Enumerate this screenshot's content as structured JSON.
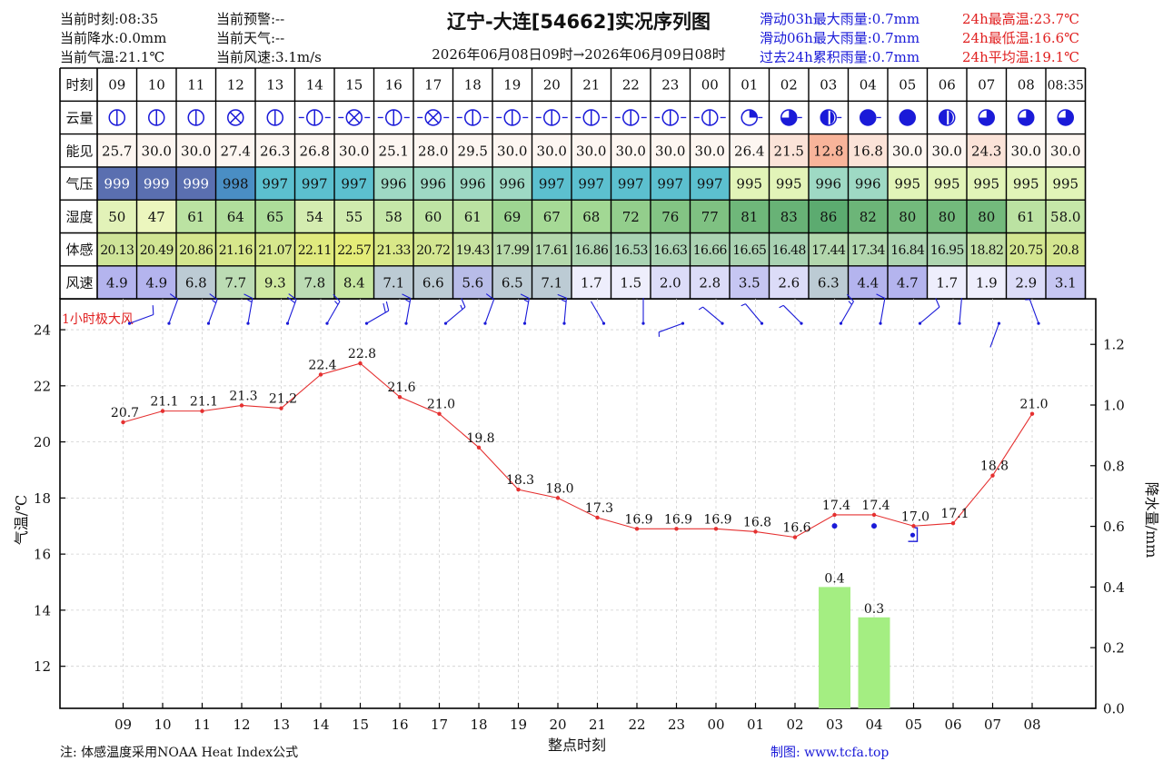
{
  "header": {
    "left": [
      "当前时刻:08:35",
      "当前降水:0.0mm",
      "当前气温:21.1℃"
    ],
    "middle": [
      "当前预警:--",
      "当前天气:--",
      "当前风速:3.1m/s"
    ],
    "title": "辽宁-大连[54662]实况序列图",
    "range": "2026年06月08日09时→2026年06月09日08时",
    "rain_stats": [
      "滑动03h最大雨量:0.7mm",
      "滑动06h最大雨量:0.7mm",
      "过去24h累积雨量:0.7mm"
    ],
    "temp_stats": [
      "24h最高温:23.7℃",
      "24h最低温:16.6℃",
      "24h平均温:19.1℃"
    ]
  },
  "table": {
    "row_labels": [
      "时刻",
      "云量",
      "能见",
      "气压",
      "湿度",
      "体感",
      "风速"
    ],
    "hours": [
      "09",
      "10",
      "11",
      "12",
      "13",
      "14",
      "15",
      "16",
      "17",
      "18",
      "19",
      "20",
      "21",
      "22",
      "23",
      "00",
      "01",
      "02",
      "03",
      "04",
      "05",
      "06",
      "07",
      "08",
      "08:35"
    ],
    "cloud": [
      "E",
      "E",
      "E",
      "X",
      "E",
      "E",
      "X",
      "E",
      "X",
      "E",
      "E",
      "E",
      "E",
      "E",
      "E",
      "E",
      "Q1",
      "Q3",
      "H",
      "F",
      "F",
      "H",
      "Q3",
      "Q3",
      "Q3"
    ],
    "visibility": [
      "25.7",
      "30.0",
      "30.0",
      "27.4",
      "26.3",
      "26.8",
      "30.0",
      "25.1",
      "28.0",
      "29.5",
      "30.0",
      "30.0",
      "30.0",
      "30.0",
      "30.0",
      "30.0",
      "26.4",
      "21.5",
      "12.8",
      "16.8",
      "30.0",
      "30.0",
      "24.3",
      "30.0",
      "30.0"
    ],
    "pressure": [
      "999",
      "999",
      "999",
      "998",
      "997",
      "997",
      "997",
      "996",
      "996",
      "996",
      "996",
      "997",
      "997",
      "997",
      "997",
      "997",
      "995",
      "995",
      "996",
      "996",
      "995",
      "995",
      "995",
      "995",
      "995"
    ],
    "humidity": [
      "50",
      "47",
      "61",
      "64",
      "65",
      "54",
      "55",
      "58",
      "60",
      "61",
      "69",
      "67",
      "68",
      "72",
      "76",
      "77",
      "81",
      "83",
      "86",
      "82",
      "80",
      "80",
      "80",
      "61",
      "58.0"
    ],
    "feels_like": [
      "20.13",
      "20.49",
      "20.86",
      "21.16",
      "21.07",
      "22.11",
      "22.57",
      "21.33",
      "20.72",
      "19.43",
      "17.99",
      "17.61",
      "16.86",
      "16.53",
      "16.63",
      "16.66",
      "16.65",
      "16.48",
      "17.44",
      "17.34",
      "16.84",
      "16.95",
      "18.82",
      "20.75",
      "20.8"
    ],
    "wind_speed": [
      "4.9",
      "4.9",
      "6.8",
      "7.7",
      "9.3",
      "7.8",
      "8.4",
      "7.1",
      "6.6",
      "5.6",
      "6.5",
      "7.1",
      "1.7",
      "1.5",
      "2.0",
      "2.8",
      "3.5",
      "2.6",
      "6.3",
      "4.4",
      "4.7",
      "1.7",
      "1.9",
      "2.9",
      "3.1"
    ],
    "colors": {
      "visibility_low": "#f8b49a",
      "visibility_mid": "#fbe3d8",
      "visibility_high": "#fdf6f1",
      "pressure_999": "#5a6fb0",
      "pressure_998": "#4a8ec4",
      "pressure_997": "#5cc0cf",
      "pressure_996": "#9ed9c4",
      "pressure_995": "#e2f4b8"
    }
  },
  "chart_data": {
    "type": "line",
    "x": [
      "09",
      "10",
      "11",
      "12",
      "13",
      "14",
      "15",
      "16",
      "17",
      "18",
      "19",
      "20",
      "21",
      "22",
      "23",
      "00",
      "01",
      "02",
      "03",
      "04",
      "05",
      "06",
      "07",
      "08"
    ],
    "series": [
      {
        "type": "line",
        "color": "#e53030",
        "values": [
          20.7,
          21.1,
          21.1,
          21.3,
          21.2,
          22.4,
          22.8,
          21.6,
          21.0,
          19.8,
          18.3,
          18.0,
          17.3,
          16.9,
          16.9,
          16.9,
          16.8,
          16.6,
          17.4,
          17.4,
          17.0,
          17.1,
          18.8,
          21.0
        ],
        "value_labels": [
          "20.7",
          "21.1",
          "21.1",
          "21.3",
          "21.2",
          "22.4",
          "22.8",
          "21.6",
          "21.0",
          "19.8",
          "18.3",
          "18.0",
          "17.3",
          "16.9",
          "16.9",
          "16.9",
          "16.8",
          "16.6",
          "17.4",
          "17.4",
          "17.0",
          "17.1",
          "18.8",
          "21.0"
        ]
      },
      {
        "type": "bar",
        "axis": "right",
        "color": "#a4ee82",
        "values": [
          0,
          0,
          0,
          0,
          0,
          0,
          0,
          0,
          0,
          0,
          0,
          0,
          0,
          0,
          0,
          0,
          0,
          0,
          0.4,
          0.3,
          0,
          0,
          0,
          0
        ],
        "value_labels": [
          "",
          "",
          "",
          "",
          "",
          "",
          "",
          "",
          "",
          "",
          "",
          "",
          "",
          "",
          "",
          "",
          "",
          "",
          "0.4",
          "0.3",
          "",
          "",
          "",
          ""
        ]
      }
    ],
    "xlabel": "整点时刻",
    "ylabel": "气温/℃",
    "ylabel_right": "降水量/mm",
    "yticks": [
      "12",
      "14",
      "16",
      "18",
      "20",
      "22",
      "24"
    ],
    "ylim": [
      10.5,
      25.1
    ],
    "yticks_right": [
      "0.0",
      "0.2",
      "0.4",
      "0.6",
      "0.8",
      "1.0",
      "1.2"
    ],
    "ylim_right": [
      0,
      1.35
    ],
    "gust_label": "1小时极大风",
    "grid": true,
    "wind_barbs": [
      {
        "dir": 250,
        "speed": 4.9
      },
      {
        "dir": 200,
        "speed": 4.9
      },
      {
        "dir": 200,
        "speed": 6.8
      },
      {
        "dir": 190,
        "speed": 7.7
      },
      {
        "dir": 200,
        "speed": 9.3
      },
      {
        "dir": 210,
        "speed": 7.8
      },
      {
        "dir": 240,
        "speed": 8.4
      },
      {
        "dir": 190,
        "speed": 7.1
      },
      {
        "dir": 230,
        "speed": 6.6
      },
      {
        "dir": 200,
        "speed": 5.6
      },
      {
        "dir": 190,
        "speed": 6.5
      },
      {
        "dir": 185,
        "speed": 7.1
      },
      {
        "dir": 150,
        "speed": 1.7
      },
      {
        "dir": 180,
        "speed": 1.5
      },
      {
        "dir": 70,
        "speed": 2.0
      },
      {
        "dir": 130,
        "speed": 2.8
      },
      {
        "dir": 140,
        "speed": 3.5
      },
      {
        "dir": 135,
        "speed": 2.6
      },
      {
        "dir": 210,
        "speed": 6.3
      },
      {
        "dir": 190,
        "speed": 4.4
      },
      {
        "dir": 230,
        "speed": 4.7
      },
      {
        "dir": 185,
        "speed": 1.7
      },
      {
        "dir": 20,
        "speed": 1.9
      },
      {
        "dir": 160,
        "speed": 2.9
      }
    ],
    "weather_symbols": [
      {
        "x": "03",
        "symbol": "dot"
      },
      {
        "x": "04",
        "symbol": "dot"
      },
      {
        "x": "05",
        "symbol": "bracket-dot"
      }
    ]
  },
  "footer": {
    "note": "注: 体感温度采用NOAA Heat Index公式",
    "credit": "制图: www.tcfa.top"
  }
}
